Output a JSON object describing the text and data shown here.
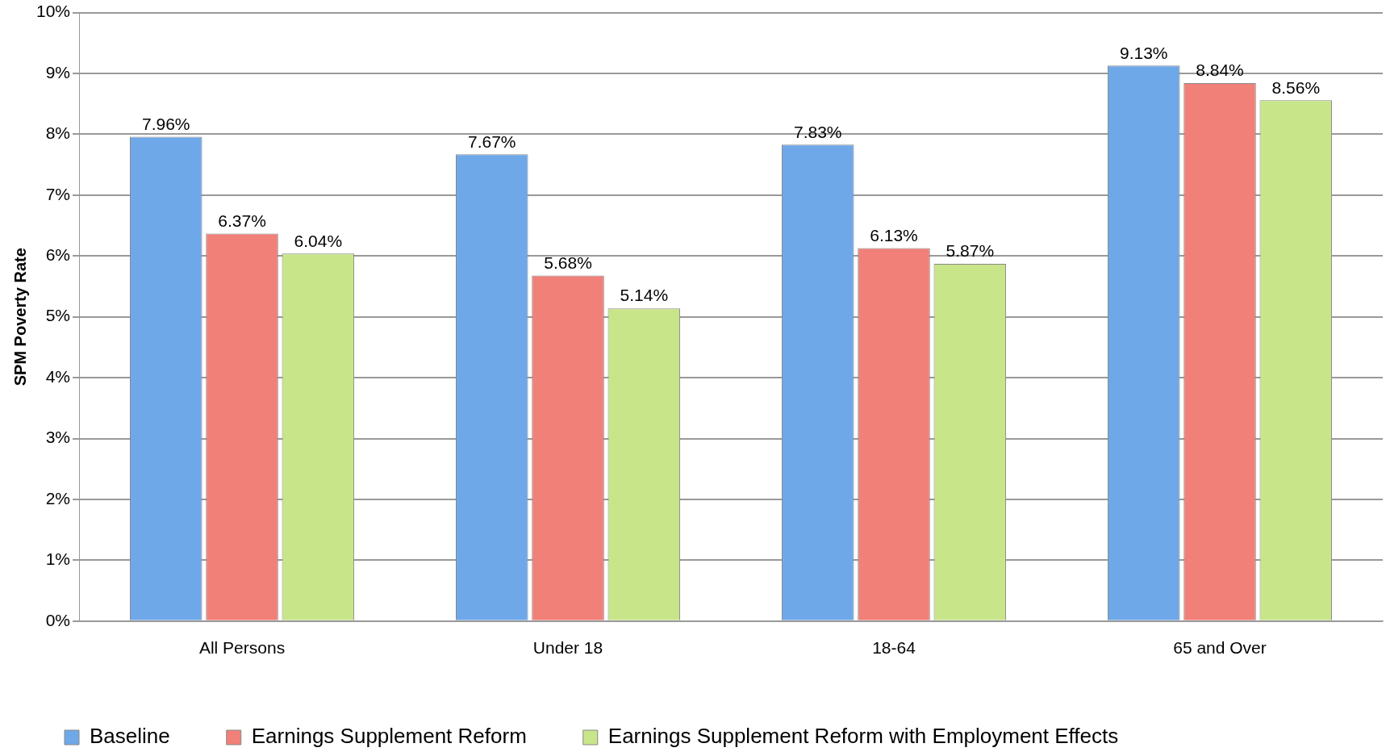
{
  "chart_data": {
    "type": "bar",
    "ylabel": "SPM Poverty Rate",
    "categories": [
      "All Persons",
      "Under 18",
      "18-64",
      "65 and Over"
    ],
    "series": [
      {
        "name": "Baseline",
        "color": "#6fa8e8",
        "values": [
          7.96,
          7.67,
          7.83,
          9.13
        ],
        "value_labels": [
          "7.96%",
          "7.67%",
          "7.83%",
          "9.13%"
        ]
      },
      {
        "name": "Earnings Supplement Reform",
        "color": "#f08078",
        "values": [
          6.37,
          5.68,
          6.13,
          8.84
        ],
        "value_labels": [
          "6.37%",
          "5.68%",
          "6.13%",
          "8.84%"
        ]
      },
      {
        "name": "Earnings Supplement Reform with Employment Effects",
        "color": "#c8e58a",
        "values": [
          6.04,
          5.14,
          5.87,
          8.56
        ],
        "value_labels": [
          "6.04%",
          "5.14%",
          "5.87%",
          "8.56%"
        ]
      }
    ],
    "ylim": [
      0,
      10
    ],
    "yticks": [
      {
        "value": 0,
        "label": "0%"
      },
      {
        "value": 1,
        "label": "1%"
      },
      {
        "value": 2,
        "label": "2%"
      },
      {
        "value": 3,
        "label": "3%"
      },
      {
        "value": 4,
        "label": "4%"
      },
      {
        "value": 5,
        "label": "5%"
      },
      {
        "value": 6,
        "label": "6%"
      },
      {
        "value": 7,
        "label": "7%"
      },
      {
        "value": 8,
        "label": "8%"
      },
      {
        "value": 9,
        "label": "9%"
      },
      {
        "value": 10,
        "label": "10%"
      }
    ],
    "grid": "y",
    "legend": "bottom"
  }
}
